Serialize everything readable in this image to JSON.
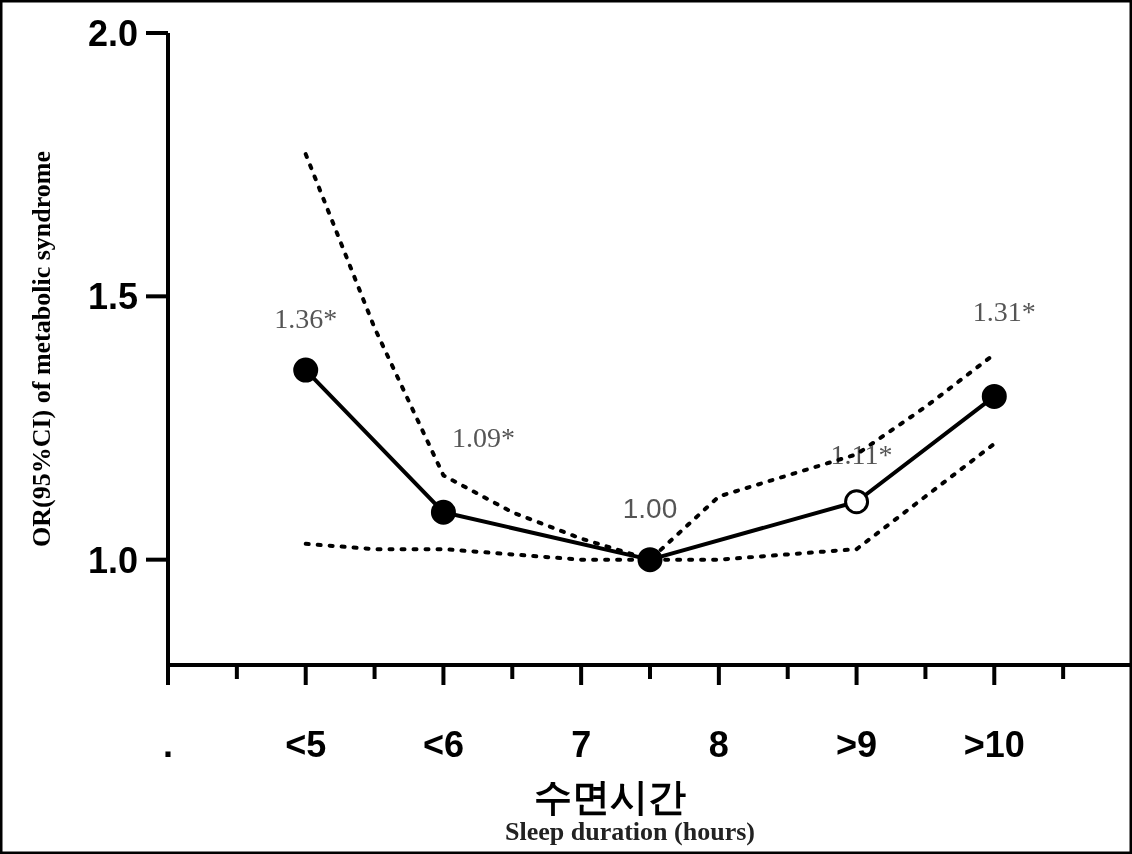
{
  "chart_data": {
    "type": "line",
    "xlabel": "Sleep duration (hours)",
    "ylabel": "OR(95%CI) of metabolic syndrome",
    "annotations": [
      "수면시간"
    ],
    "categories": [
      ".",
      null,
      "<5",
      null,
      "<6",
      null,
      "7",
      null,
      "8",
      null,
      ">9",
      null,
      ">10",
      null
    ],
    "ylim": [
      0.8,
      2.0
    ],
    "yticks": [
      {
        "value": 1,
        "label": "1.0"
      },
      {
        "value": 1.5,
        "label": "1.5"
      },
      {
        "value": 2,
        "label": "2.0"
      }
    ],
    "series": [
      {
        "values": [
          null,
          null,
          1.36,
          null,
          1.09,
          null,
          null,
          1.0,
          null,
          null,
          1.11,
          null,
          1.31,
          null
        ],
        "color": "#000000",
        "colors": [
          null,
          null,
          "#000000",
          null,
          "#000000",
          null,
          null,
          "#000000",
          null,
          null,
          "#ffffff",
          null,
          "#000000",
          null
        ],
        "marker": "circle",
        "line_style": "solid",
        "value_labels": [
          null,
          null,
          "1.36*",
          null,
          "1.09*",
          null,
          null,
          "1.00",
          null,
          null,
          "1.11*",
          null,
          "1.31*",
          null
        ]
      },
      {
        "values": [
          null,
          null,
          1.77,
          1.44,
          1.16,
          1.09,
          1.04,
          1.0,
          1.12,
          1.16,
          1.2,
          1.29,
          1.39,
          null
        ],
        "color": "#000000",
        "marker": "none",
        "line_style": "dotted"
      },
      {
        "values": [
          null,
          null,
          1.03,
          1.02,
          1.02,
          1.01,
          1.0,
          1.0,
          1.0,
          1.01,
          1.02,
          1.12,
          1.22,
          null
        ],
        "color": "#000000",
        "marker": "none",
        "line_style": "dotted"
      }
    ]
  }
}
